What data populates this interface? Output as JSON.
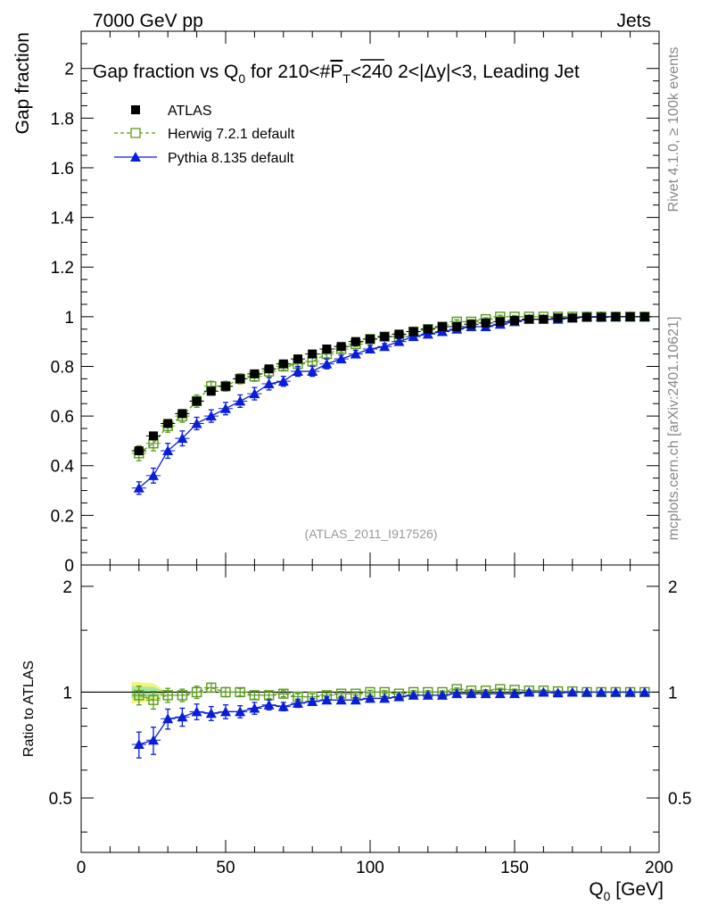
{
  "header": {
    "left": "7000 GeV pp",
    "right": "Jets"
  },
  "side_labels": {
    "rivet": "Rivet 4.1.0, ≥ 100k events",
    "mcplots": "mcplots.cern.ch [arXiv:2401.10621]"
  },
  "colors": {
    "atlas": "#000000",
    "herwig": "#5a9a1e",
    "pythia": "#0a1ed8",
    "band_yellow": "#f5f57a",
    "band_green": "#a8e6a0"
  },
  "chart_data": [
    {
      "type": "scatter",
      "title": "Gap fraction vs Q0 for 210<#PT<240  2<|Δy|<3, Leading Jet",
      "title_parts": {
        "a": "Gap fraction vs Q",
        "sub0": "0",
        "b": " for 210<#",
        "p": "P",
        "sub_t": "T",
        "c": "<240  2<|Δy|<3, Leading Jet"
      },
      "watermark": "(ATLAS_2011_I917526)",
      "ylabel": "Gap fraction",
      "xlim": [
        0,
        200
      ],
      "ylim": [
        0,
        2.15
      ],
      "y_ticks": [
        0,
        0.2,
        0.4,
        0.6,
        0.8,
        1,
        1.2,
        1.4,
        1.6,
        1.8,
        2
      ],
      "y_tick_labels": [
        "0",
        "0.2",
        "0.4",
        "0.6",
        "0.8",
        "1",
        "1.2",
        "1.4",
        "1.6",
        "1.8",
        "2"
      ],
      "x": [
        20,
        25,
        30,
        35,
        40,
        45,
        50,
        55,
        60,
        65,
        70,
        75,
        80,
        85,
        90,
        95,
        100,
        105,
        110,
        115,
        120,
        125,
        130,
        135,
        140,
        145,
        150,
        155,
        160,
        165,
        170,
        175,
        180,
        185,
        190,
        195
      ],
      "series": [
        {
          "name": "ATLAS",
          "marker": "filled-square",
          "values": [
            0.46,
            0.52,
            0.57,
            0.61,
            0.66,
            0.7,
            0.72,
            0.75,
            0.77,
            0.79,
            0.81,
            0.83,
            0.85,
            0.87,
            0.88,
            0.9,
            0.91,
            0.92,
            0.93,
            0.94,
            0.95,
            0.96,
            0.96,
            0.97,
            0.975,
            0.98,
            0.985,
            0.99,
            0.99,
            0.995,
            0.995,
            0.998,
            0.998,
            1.0,
            1.0,
            1.0
          ],
          "errors": [
            0.015,
            0.015,
            0.015,
            0.015,
            0.015,
            0.015,
            0.015,
            0.015,
            0.012,
            0.012,
            0.012,
            0.012,
            0.01,
            0.01,
            0.01,
            0.01,
            0.01,
            0.01,
            0.01,
            0.008,
            0.008,
            0.008,
            0.008,
            0.006,
            0.006,
            0.005,
            0.005,
            0.005,
            0.004,
            0.004,
            0.004,
            0.003,
            0.003,
            0.003,
            0.003,
            0.003
          ]
        },
        {
          "name": "Herwig 7.2.1 default",
          "marker": "open-square",
          "values": [
            0.45,
            0.49,
            0.56,
            0.6,
            0.66,
            0.72,
            0.72,
            0.75,
            0.76,
            0.78,
            0.8,
            0.81,
            0.82,
            0.85,
            0.87,
            0.89,
            0.91,
            0.92,
            0.92,
            0.94,
            0.95,
            0.96,
            0.98,
            0.98,
            0.99,
            1.0,
            1.0,
            1.0,
            1.0,
            1.0,
            1.0,
            1.0,
            1.0,
            1.0,
            1.0,
            1.0
          ],
          "errors": [
            0.03,
            0.03,
            0.025,
            0.025,
            0.025,
            0.02,
            0.02,
            0.02,
            0.02,
            0.02,
            0.015,
            0.015,
            0.015,
            0.015,
            0.015,
            0.01,
            0.01,
            0.01,
            0.01,
            0.01,
            0.01,
            0.008,
            0.008,
            0.008,
            0.006,
            0.006,
            0.005,
            0.005,
            0.004,
            0.004,
            0.004,
            0.003,
            0.003,
            0.003,
            0.003,
            0.003
          ]
        },
        {
          "name": "Pythia 8.135 default",
          "marker": "filled-triangle",
          "values": [
            0.31,
            0.36,
            0.46,
            0.51,
            0.57,
            0.6,
            0.63,
            0.66,
            0.69,
            0.73,
            0.74,
            0.78,
            0.78,
            0.81,
            0.83,
            0.85,
            0.87,
            0.88,
            0.9,
            0.92,
            0.93,
            0.94,
            0.95,
            0.96,
            0.96,
            0.97,
            0.98,
            0.99,
            0.99,
            0.99,
            0.995,
            1.0,
            1.0,
            1.0,
            1.0,
            1.0
          ],
          "errors": [
            0.025,
            0.03,
            0.03,
            0.03,
            0.025,
            0.025,
            0.025,
            0.025,
            0.025,
            0.025,
            0.02,
            0.02,
            0.02,
            0.02,
            0.015,
            0.015,
            0.015,
            0.012,
            0.012,
            0.01,
            0.01,
            0.008,
            0.008,
            0.006,
            0.006,
            0.005,
            0.005,
            0.004,
            0.004,
            0.004,
            0.003,
            0.003,
            0.003,
            0.003,
            0.003,
            0.003
          ]
        }
      ],
      "legend": [
        "ATLAS",
        "Herwig 7.2.1 default",
        "Pythia 8.135 default"
      ],
      "legend_position": "top-left"
    },
    {
      "type": "scatter",
      "title": "",
      "ylabel": "Ratio to ATLAS",
      "xlabel": "Q0 [GeV]",
      "xlabel_parts": {
        "a": "Q",
        "sub": "0",
        "b": " [GeV]"
      },
      "xlim": [
        0,
        200
      ],
      "ylim": [
        0.35,
        2.3
      ],
      "y_scale": "log",
      "x_ticks": [
        0,
        50,
        100,
        150,
        200
      ],
      "x_tick_labels": [
        "0",
        "50",
        "100",
        "150",
        "200"
      ],
      "y_ticks": [
        0.5,
        1,
        2
      ],
      "y_tick_labels": [
        "0.5",
        "1",
        "2"
      ],
      "reference_line": 1,
      "band": {
        "x_end": 30,
        "yellow_half_width": [
          0.07,
          0.06,
          0.0
        ],
        "green_half_width": [
          0.04,
          0.035,
          0.0
        ]
      },
      "series": [
        {
          "name": "Herwig 7.2.1 default",
          "values": [
            0.98,
            0.95,
            0.98,
            0.98,
            1.0,
            1.03,
            1.0,
            1.0,
            0.98,
            0.98,
            0.99,
            0.97,
            0.97,
            0.98,
            0.99,
            0.99,
            1.0,
            1.0,
            0.99,
            1.0,
            1.0,
            1.0,
            1.02,
            1.01,
            1.01,
            1.02,
            1.015,
            1.01,
            1.01,
            1.005,
            1.005,
            1.0,
            1.0,
            1.0,
            1.0,
            1.0
          ],
          "errors": [
            0.06,
            0.055,
            0.045,
            0.04,
            0.04,
            0.03,
            0.03,
            0.025,
            0.025,
            0.022,
            0.02,
            0.02,
            0.018,
            0.016,
            0.015,
            0.012,
            0.012,
            0.01,
            0.01,
            0.01,
            0.01,
            0.008,
            0.008,
            0.008,
            0.006,
            0.006,
            0.005,
            0.005,
            0.004,
            0.004,
            0.004,
            0.003,
            0.003,
            0.003,
            0.003,
            0.003
          ]
        },
        {
          "name": "Pythia 8.135 default",
          "values": [
            0.71,
            0.73,
            0.84,
            0.85,
            0.88,
            0.87,
            0.88,
            0.88,
            0.9,
            0.92,
            0.91,
            0.93,
            0.94,
            0.95,
            0.95,
            0.95,
            0.96,
            0.96,
            0.97,
            0.98,
            0.98,
            0.98,
            0.99,
            0.99,
            0.99,
            0.99,
            0.99,
            1.0,
            1.0,
            0.995,
            1.0,
            1.0,
            1.0,
            1.0,
            1.0,
            1.0
          ],
          "errors": [
            0.06,
            0.065,
            0.055,
            0.05,
            0.045,
            0.04,
            0.04,
            0.035,
            0.035,
            0.03,
            0.025,
            0.025,
            0.02,
            0.02,
            0.018,
            0.016,
            0.015,
            0.012,
            0.012,
            0.01,
            0.01,
            0.008,
            0.008,
            0.006,
            0.006,
            0.005,
            0.005,
            0.004,
            0.004,
            0.004,
            0.003,
            0.003,
            0.003,
            0.003,
            0.003,
            0.003
          ]
        }
      ]
    }
  ]
}
